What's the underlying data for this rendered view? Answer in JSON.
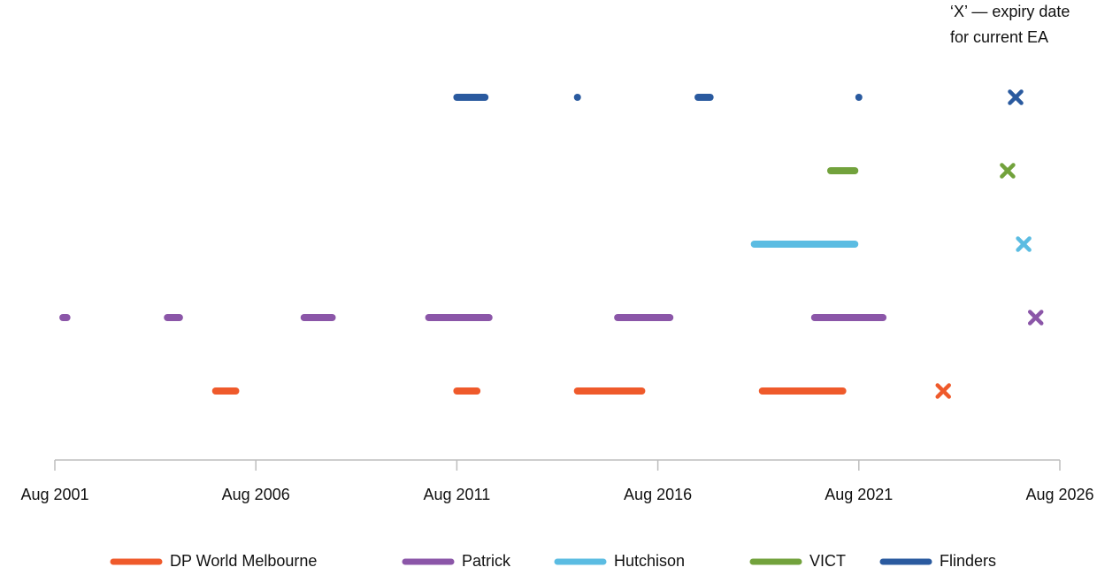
{
  "chart_data": {
    "type": "timeline",
    "annotation": [
      "‘X’ — expiry date",
      "for current EA"
    ],
    "xlim": [
      2001.6,
      2026.6
    ],
    "xticks": [
      {
        "value": 2001.6,
        "label": "Aug 2001"
      },
      {
        "value": 2006.6,
        "label": "Aug 2006"
      },
      {
        "value": 2011.6,
        "label": "Aug 2011"
      },
      {
        "value": 2016.6,
        "label": "Aug 2016"
      },
      {
        "value": 2021.6,
        "label": "Aug 2021"
      },
      {
        "value": 2026.6,
        "label": "Aug 2026"
      }
    ],
    "series": [
      {
        "name": "DP World Melbourne",
        "color": "#ef5a2b",
        "segments": [
          [
            2005.6,
            2006.1
          ],
          [
            2011.6,
            2012.1
          ],
          [
            2014.6,
            2016.2
          ],
          [
            2019.2,
            2021.2
          ]
        ],
        "expiry": 2023.7
      },
      {
        "name": "Patrick",
        "color": "#8b56a8",
        "segments": [
          [
            2001.8,
            2001.9
          ],
          [
            2004.4,
            2004.7
          ],
          [
            2007.8,
            2008.5
          ],
          [
            2010.9,
            2012.4
          ],
          [
            2015.6,
            2016.9
          ],
          [
            2020.5,
            2022.2
          ]
        ],
        "expiry": 2026.0
      },
      {
        "name": "Hutchison",
        "color": "#5bbce2",
        "segments": [
          [
            2019.0,
            2021.5
          ]
        ],
        "expiry": 2025.7
      },
      {
        "name": "VICT",
        "color": "#72a23c",
        "segments": [
          [
            2020.9,
            2021.5
          ]
        ],
        "expiry": 2025.3
      },
      {
        "name": "Flinders",
        "color": "#2a5a9f",
        "segments": [
          [
            2011.6,
            2012.3
          ],
          [
            2014.6,
            2014.6
          ],
          [
            2017.6,
            2017.9
          ],
          [
            2021.6,
            2021.6
          ]
        ],
        "expiry": 2025.5
      }
    ]
  }
}
